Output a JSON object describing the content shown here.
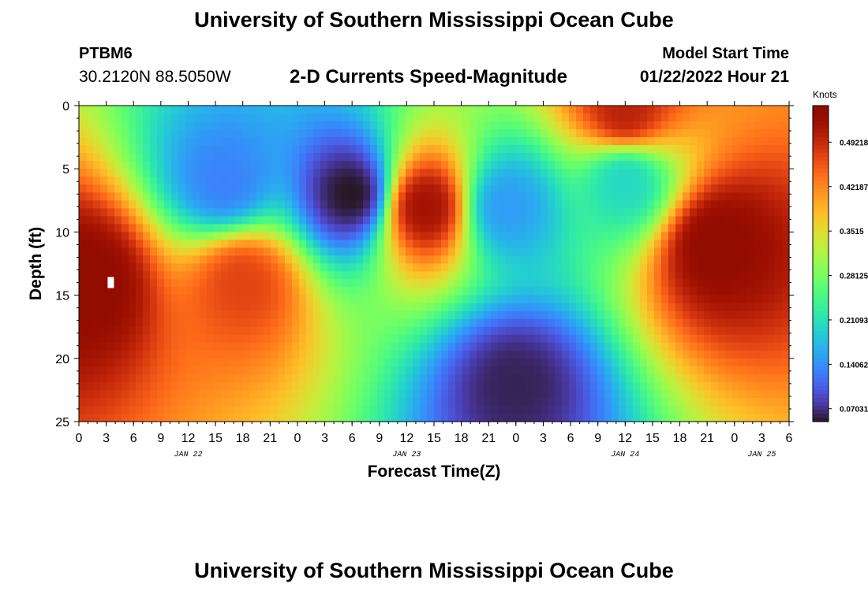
{
  "header": {
    "title": "University of Southern Mississippi Ocean Cube",
    "station_id": "PTBM6",
    "coordinates": "30.2120N  88.5050W",
    "plot_title": "2-D Currents Speed-Magnitude",
    "start_label": "Model Start Time",
    "start_value": "01/22/2022 Hour 21"
  },
  "footer": {
    "title": "University of Southern Mississippi Ocean Cube"
  },
  "chart_data": {
    "type": "heatmap",
    "title": "2-D Currents Speed-Magnitude",
    "xlabel": "Forecast Time(Z)",
    "ylabel": "Depth (ft)",
    "x_unit": "hours since 2022-01-22 00Z",
    "xlim": [
      0,
      78
    ],
    "ylim": [
      25,
      0
    ],
    "y_ticks": [
      "0",
      "5",
      "10",
      "15",
      "20",
      "25"
    ],
    "y_tick_values": [
      0,
      5,
      10,
      15,
      20,
      25
    ],
    "x_tick_labels": [
      "0",
      "3",
      "6",
      "9",
      "12",
      "15",
      "18",
      "21",
      "0",
      "3",
      "6",
      "9",
      "12",
      "15",
      "18",
      "21",
      "0",
      "3",
      "6",
      "9",
      "12",
      "15",
      "18",
      "21",
      "0",
      "3",
      "6"
    ],
    "date_labels": [
      {
        "text": "JAN 22",
        "hour": 12
      },
      {
        "text": "JAN 23",
        "hour": 36
      },
      {
        "text": "JAN 24",
        "hour": 60
      },
      {
        "text": "JAN 25",
        "hour": 75
      }
    ],
    "colorbar": {
      "label": "Knots",
      "min": 0.05,
      "max": 0.55,
      "tick_values": [
        0.07031,
        0.14062,
        0.21093,
        0.28125,
        0.3515,
        0.42187,
        0.49218
      ],
      "tick_labels": [
        "0.07031",
        "0.14062",
        "0.21093",
        "0.28125",
        "0.3515",
        "0.42187",
        "0.49218"
      ]
    },
    "field_features": [
      {
        "t": 1.0,
        "d": 14.0,
        "value": 0.54,
        "note": "strong core near surface-bottom left"
      },
      {
        "t": 18.0,
        "d": 14.0,
        "value": 0.47
      },
      {
        "t": 38.0,
        "d": 8.0,
        "value": 0.52
      },
      {
        "t": 70.0,
        "d": 11.0,
        "value": 0.54
      },
      {
        "t": 30.0,
        "d": 7.0,
        "value": 0.05,
        "note": "weak core"
      },
      {
        "t": 48.0,
        "d": 22.0,
        "value": 0.06
      },
      {
        "t": 47.0,
        "d": 8.0,
        "value": 0.15
      },
      {
        "t": 16.0,
        "d": 6.0,
        "value": 0.13
      },
      {
        "t": 60.0,
        "d": 6.0,
        "value": 0.2
      },
      {
        "t": 60.0,
        "d": 0.5,
        "value": 0.5
      }
    ],
    "marker": {
      "t": 3.5,
      "d": 14.0
    }
  }
}
